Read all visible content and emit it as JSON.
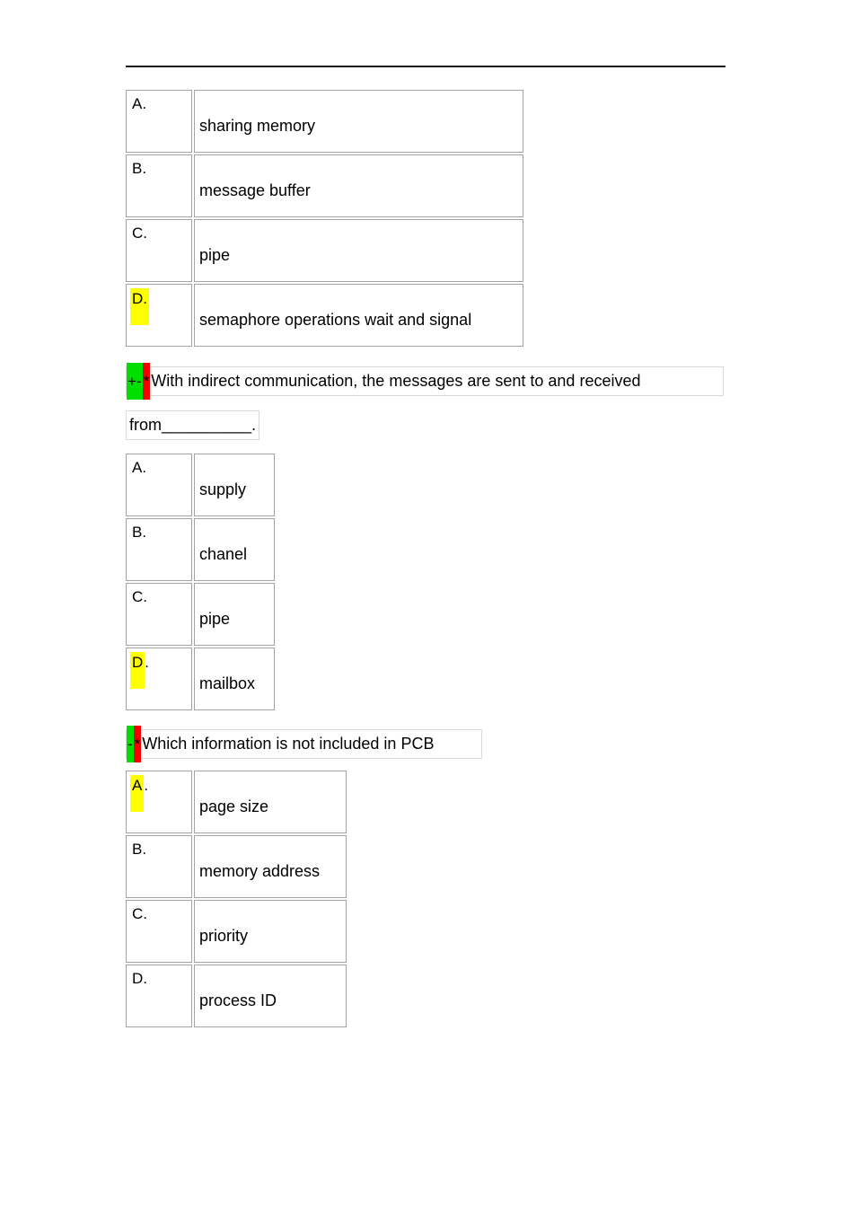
{
  "colors": {
    "highlight_yellow": "#ffff00",
    "revision_marker_green": "#00df00",
    "revision_marker_red": "#f40000",
    "table_border_gray": "#a3a3a3",
    "question_field_border_gray": "#d9d9d9"
  },
  "questions": {
    "q1": {
      "marker_green": "+-",
      "marker_red": "*",
      "line1": "With indirect communication, the messages are sent to and received",
      "line2": "from__________."
    },
    "q2": {
      "marker_green": "-",
      "marker_red": "*",
      "text": "Which information is not included in PCB"
    }
  },
  "tables": {
    "t1": {
      "rows": [
        {
          "letter_hl": "",
          "letter_plain": "A.",
          "text": "sharing memory"
        },
        {
          "letter_hl": "",
          "letter_plain": "B.",
          "text": "message buffer"
        },
        {
          "letter_hl": "",
          "letter_plain": "C.",
          "text": "pipe"
        },
        {
          "letter_hl": "D.",
          "letter_plain": "",
          "text": "semaphore operations wait and signal"
        }
      ]
    },
    "t2": {
      "rows": [
        {
          "letter_hl": "",
          "letter_plain": "A.",
          "text": "supply"
        },
        {
          "letter_hl": "",
          "letter_plain": "B.",
          "text": "chanel"
        },
        {
          "letter_hl": "",
          "letter_plain": "C.",
          "text": "pipe"
        },
        {
          "letter_hl": "D",
          "letter_plain": ".",
          "text": "mailbox"
        }
      ]
    },
    "t3": {
      "rows": [
        {
          "letter_hl": "A",
          "letter_plain": ".",
          "text": "page size"
        },
        {
          "letter_hl": "",
          "letter_plain": "B.",
          "text": "memory address"
        },
        {
          "letter_hl": "",
          "letter_plain": "C.",
          "text": "priority"
        },
        {
          "letter_hl": "",
          "letter_plain": "D.",
          "text": "process ID"
        }
      ]
    }
  }
}
